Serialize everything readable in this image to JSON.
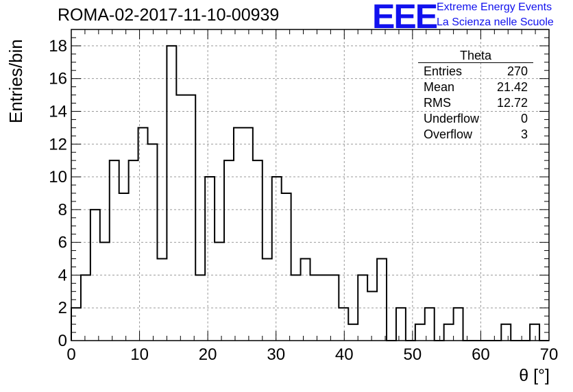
{
  "header": {
    "title": "ROMA-02-2017-11-10-00939",
    "logo_text": "EEE",
    "logo_line1": "Extreme Energy Events",
    "logo_line2": "La Scienza nelle Scuole",
    "logo_color": "#1111ee"
  },
  "stats": {
    "title": "Theta",
    "rows": [
      {
        "label": "Entries",
        "value": "270"
      },
      {
        "label": "Mean",
        "value": "21.42"
      },
      {
        "label": "RMS",
        "value": "12.72"
      },
      {
        "label": "Underflow",
        "value": "0"
      },
      {
        "label": "Overflow",
        "value": "3"
      }
    ]
  },
  "chart_data": {
    "type": "bar",
    "subtype": "step-histogram",
    "title": "ROMA-02-2017-11-10-00939",
    "xlabel": "θ [°]",
    "ylabel": "Entries/bin",
    "xlim": [
      0,
      70
    ],
    "ylim": [
      0,
      19
    ],
    "grid": true,
    "bin_width": 1.4,
    "x_ticks": [
      0,
      10,
      20,
      30,
      40,
      50,
      60,
      70
    ],
    "y_ticks": [
      0,
      2,
      4,
      6,
      8,
      10,
      12,
      14,
      16,
      18
    ],
    "values": [
      2,
      4,
      8,
      6,
      11,
      9,
      11,
      13,
      12,
      5,
      18,
      15,
      15,
      4,
      10,
      6,
      11,
      13,
      13,
      11,
      5,
      10,
      9,
      4,
      5,
      4,
      4,
      4,
      2,
      1,
      4,
      3,
      5,
      0,
      2,
      0,
      1,
      2,
      0,
      1,
      2,
      0,
      0,
      0,
      0,
      1,
      0,
      0,
      1,
      0
    ]
  }
}
